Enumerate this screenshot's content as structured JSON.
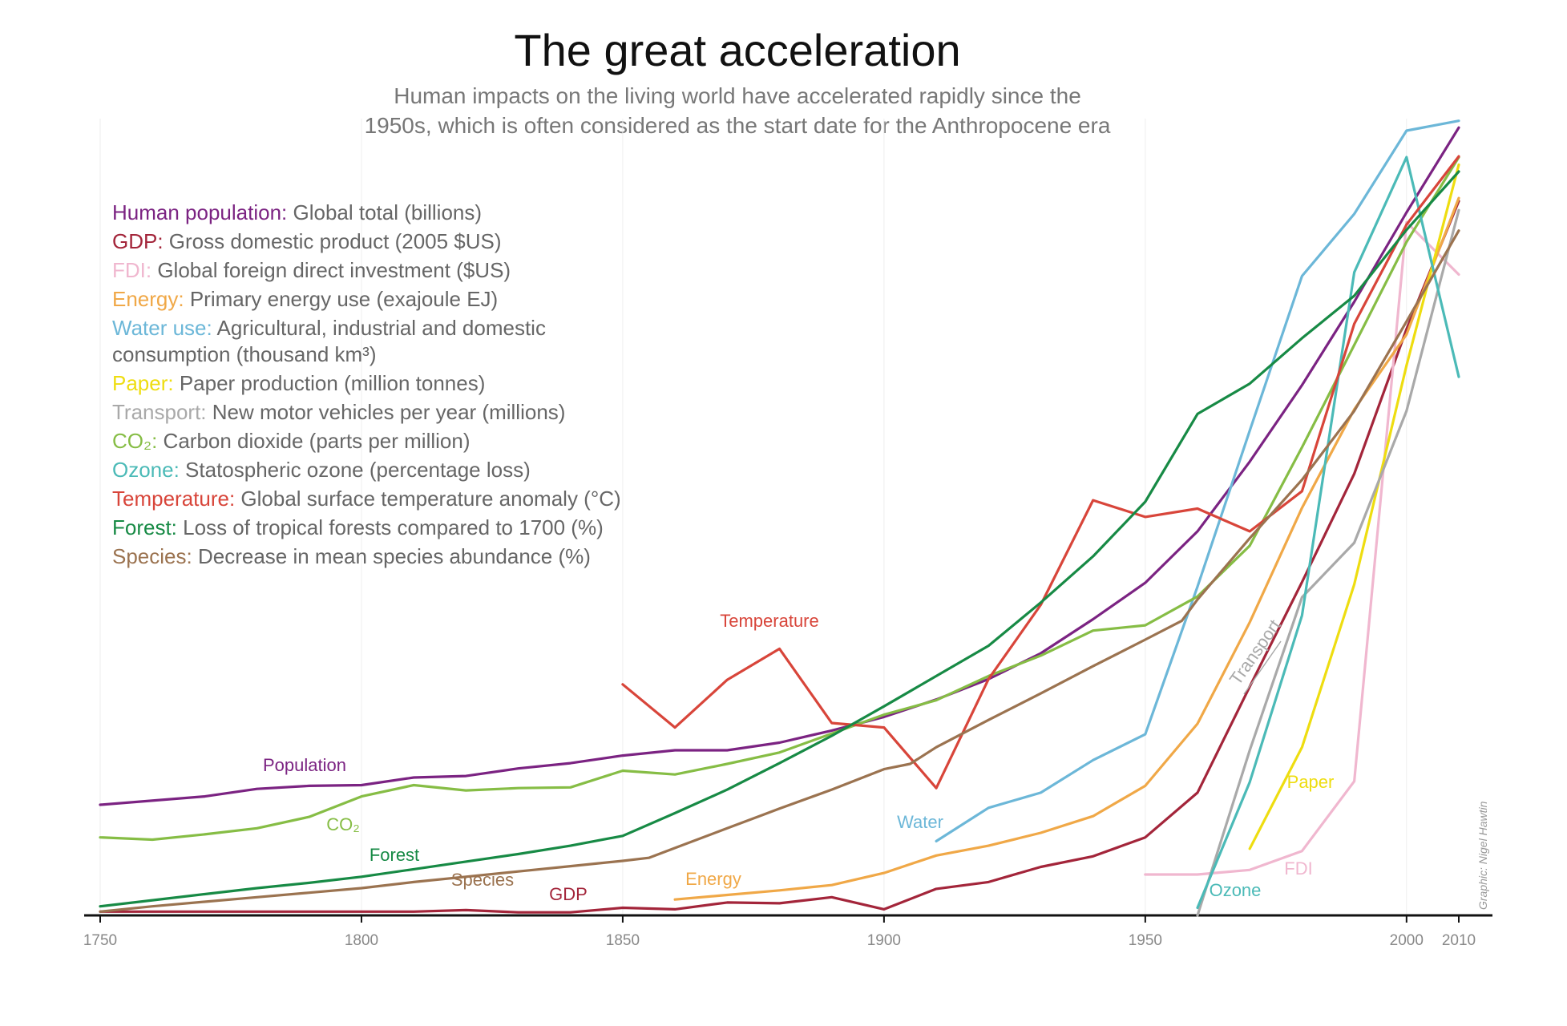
{
  "title": "The great acceleration",
  "subtitle_line1": "Human impacts on the living world have accelerated rapidly since the",
  "subtitle_line2": "1950s, which is often considered as the start date for the Anthropocene era",
  "credit": "Graphic: Nigel Hawtin",
  "legend": [
    {
      "name": "Human population:",
      "desc": "Global total (billions)",
      "color": "#7b2382"
    },
    {
      "name": "GDP:",
      "desc": "Gross domestic product (2005 $US)",
      "color": "#a3253a"
    },
    {
      "name": "FDI:",
      "desc": "Global foreign direct investment ($US)",
      "color": "#f0b7cf"
    },
    {
      "name": "Energy:",
      "desc": "Primary energy use (exajoule EJ)",
      "color": "#f0a847"
    },
    {
      "name": "Water use:",
      "desc": "Agricultural, industrial and domestic",
      "desc2": "consumption (thousand km³)",
      "color": "#6cb7d8"
    },
    {
      "name": "Paper:",
      "desc": "Paper production (million tonnes)",
      "color": "#eedd10"
    },
    {
      "name": "Transport:",
      "desc": "New motor vehicles per year (millions)",
      "color": "#a9a9a9"
    },
    {
      "name": "CO₂:",
      "desc": "Carbon dioxide (parts per million)",
      "color": "#86bd45"
    },
    {
      "name": "Ozone:",
      "desc": "Statospheric ozone (percentage loss)",
      "color": "#4bbab7"
    },
    {
      "name": "Temperature:",
      "desc": "Global surface temperature anomaly (°C)",
      "color": "#d8453a"
    },
    {
      "name": "Forest:",
      "desc": "Loss of tropical forests compared to 1700 (%)",
      "color": "#178a45"
    },
    {
      "name": "Species:",
      "desc": "Decrease in mean species abundance (%)",
      "color": "#9b7350"
    }
  ],
  "chart_data": {
    "type": "line",
    "title": "The great acceleration",
    "subtitle": "Human impacts on the living world have accelerated rapidly since the 1950s, which is often considered as the start date for the Anthropocene era",
    "xlabel": "",
    "ylabel": "",
    "x_ticks": [
      1750,
      1800,
      1850,
      1900,
      1950,
      2000,
      2010
    ],
    "xlim": [
      1750,
      2010
    ],
    "ylim": [
      0,
      1
    ],
    "grid": "vertical",
    "series": [
      {
        "name": "Human population",
        "label": "Population",
        "color": "#7b2382",
        "points": [
          [
            1750,
            0.146
          ],
          [
            1770,
            0.157
          ],
          [
            1780,
            0.167
          ],
          [
            1790,
            0.171
          ],
          [
            1800,
            0.172
          ],
          [
            1810,
            0.182
          ],
          [
            1820,
            0.184
          ],
          [
            1830,
            0.194
          ],
          [
            1840,
            0.201
          ],
          [
            1850,
            0.211
          ],
          [
            1860,
            0.218
          ],
          [
            1870,
            0.218
          ],
          [
            1880,
            0.228
          ],
          [
            1890,
            0.244
          ],
          [
            1900,
            0.262
          ],
          [
            1910,
            0.285
          ],
          [
            1920,
            0.312
          ],
          [
            1930,
            0.346
          ],
          [
            1940,
            0.391
          ],
          [
            1950,
            0.439
          ],
          [
            1960,
            0.507
          ],
          [
            1970,
            0.599
          ],
          [
            1980,
            0.7
          ],
          [
            1990,
            0.81
          ],
          [
            2000,
            0.928
          ],
          [
            2010,
            1.04
          ]
        ]
      },
      {
        "name": "GDP",
        "label": "GDP",
        "color": "#a3253a",
        "points": [
          [
            1750,
            0.005
          ],
          [
            1800,
            0.005
          ],
          [
            1810,
            0.005
          ],
          [
            1820,
            0.007
          ],
          [
            1830,
            0.004
          ],
          [
            1840,
            0.004
          ],
          [
            1850,
            0.01
          ],
          [
            1860,
            0.008
          ],
          [
            1870,
            0.017
          ],
          [
            1880,
            0.016
          ],
          [
            1890,
            0.024
          ],
          [
            1900,
            0.008
          ],
          [
            1910,
            0.035
          ],
          [
            1920,
            0.044
          ],
          [
            1930,
            0.064
          ],
          [
            1940,
            0.078
          ],
          [
            1950,
            0.103
          ],
          [
            1960,
            0.162
          ],
          [
            1970,
            0.302
          ],
          [
            1980,
            0.44
          ],
          [
            1990,
            0.583
          ],
          [
            2000,
            0.774
          ],
          [
            2010,
            0.943
          ]
        ]
      },
      {
        "name": "FDI",
        "label": "FDI",
        "color": "#f0b7cf",
        "points": [
          [
            1950,
            0.054
          ],
          [
            1960,
            0.054
          ],
          [
            1970,
            0.06
          ],
          [
            1980,
            0.085
          ],
          [
            1990,
            0.177
          ],
          [
            2000,
            0.915
          ],
          [
            2010,
            0.846
          ]
        ]
      },
      {
        "name": "Energy",
        "label": "Energy",
        "color": "#f0a847",
        "points": [
          [
            1860,
            0.021
          ],
          [
            1870,
            0.027
          ],
          [
            1880,
            0.033
          ],
          [
            1890,
            0.04
          ],
          [
            1900,
            0.056
          ],
          [
            1910,
            0.079
          ],
          [
            1920,
            0.092
          ],
          [
            1930,
            0.109
          ],
          [
            1940,
            0.131
          ],
          [
            1950,
            0.171
          ],
          [
            1960,
            0.253
          ],
          [
            1970,
            0.387
          ],
          [
            1980,
            0.538
          ],
          [
            1990,
            0.668
          ],
          [
            2000,
            0.767
          ],
          [
            2010,
            0.947
          ]
        ]
      },
      {
        "name": "Water use",
        "label": "Water",
        "color": "#6cb7d8",
        "points": [
          [
            1910,
            0.098
          ],
          [
            1920,
            0.142
          ],
          [
            1930,
            0.162
          ],
          [
            1940,
            0.205
          ],
          [
            1950,
            0.239
          ],
          [
            1960,
            0.434
          ],
          [
            1970,
            0.64
          ],
          [
            1980,
            0.844
          ],
          [
            1990,
            0.926
          ],
          [
            2000,
            1.036
          ],
          [
            2010,
            1.049
          ]
        ]
      },
      {
        "name": "Paper",
        "label": "Paper",
        "color": "#eedd10",
        "points": [
          [
            1970,
            0.088
          ],
          [
            1980,
            0.222
          ],
          [
            1990,
            0.437
          ],
          [
            2000,
            0.726
          ],
          [
            2010,
            0.991
          ]
        ]
      },
      {
        "name": "Transport",
        "label": "Transport",
        "color": "#a9a9a9",
        "points": [
          [
            1960,
            0.0
          ],
          [
            1970,
            0.218
          ],
          [
            1980,
            0.42
          ],
          [
            1990,
            0.492
          ],
          [
            2000,
            0.666
          ],
          [
            2010,
            0.931
          ]
        ]
      },
      {
        "name": "CO₂",
        "label": "CO₂",
        "color": "#86bd45",
        "points": [
          [
            1750,
            0.103
          ],
          [
            1760,
            0.1
          ],
          [
            1770,
            0.107
          ],
          [
            1780,
            0.115
          ],
          [
            1790,
            0.13
          ],
          [
            1800,
            0.157
          ],
          [
            1810,
            0.172
          ],
          [
            1820,
            0.165
          ],
          [
            1830,
            0.168
          ],
          [
            1840,
            0.169
          ],
          [
            1850,
            0.191
          ],
          [
            1860,
            0.186
          ],
          [
            1870,
            0.2
          ],
          [
            1880,
            0.215
          ],
          [
            1890,
            0.24
          ],
          [
            1900,
            0.265
          ],
          [
            1910,
            0.284
          ],
          [
            1920,
            0.316
          ],
          [
            1930,
            0.343
          ],
          [
            1940,
            0.376
          ],
          [
            1950,
            0.383
          ],
          [
            1960,
            0.421
          ],
          [
            1970,
            0.488
          ],
          [
            1980,
            0.618
          ],
          [
            1990,
            0.753
          ],
          [
            2000,
            0.889
          ],
          [
            2010,
            1.001
          ]
        ]
      },
      {
        "name": "Ozone",
        "label": "Ozone",
        "color": "#4bbab7",
        "points": [
          [
            1960,
            0.01
          ],
          [
            1970,
            0.176
          ],
          [
            1980,
            0.396
          ],
          [
            1990,
            0.849
          ],
          [
            2000,
            1.001
          ],
          [
            2010,
            0.711
          ]
        ]
      },
      {
        "name": "Temperature",
        "label": "Temperature",
        "color": "#d8453a",
        "points": [
          [
            1850,
            0.305
          ],
          [
            1860,
            0.248
          ],
          [
            1870,
            0.311
          ],
          [
            1880,
            0.352
          ],
          [
            1890,
            0.254
          ],
          [
            1900,
            0.248
          ],
          [
            1910,
            0.168
          ],
          [
            1920,
            0.312
          ],
          [
            1930,
            0.41
          ],
          [
            1940,
            0.548
          ],
          [
            1950,
            0.526
          ],
          [
            1960,
            0.537
          ],
          [
            1970,
            0.507
          ],
          [
            1980,
            0.56
          ],
          [
            1990,
            0.781
          ],
          [
            2000,
            0.912
          ],
          [
            2010,
            1.002
          ]
        ]
      },
      {
        "name": "Forest",
        "label": "Forest",
        "color": "#178a45",
        "points": [
          [
            1750,
            0.012
          ],
          [
            1760,
            0.02
          ],
          [
            1770,
            0.028
          ],
          [
            1780,
            0.036
          ],
          [
            1790,
            0.043
          ],
          [
            1800,
            0.051
          ],
          [
            1810,
            0.061
          ],
          [
            1820,
            0.071
          ],
          [
            1830,
            0.081
          ],
          [
            1840,
            0.092
          ],
          [
            1850,
            0.105
          ],
          [
            1860,
            0.135
          ],
          [
            1870,
            0.166
          ],
          [
            1880,
            0.201
          ],
          [
            1890,
            0.237
          ],
          [
            1900,
            0.276
          ],
          [
            1910,
            0.316
          ],
          [
            1920,
            0.356
          ],
          [
            1930,
            0.413
          ],
          [
            1940,
            0.474
          ],
          [
            1950,
            0.546
          ],
          [
            1960,
            0.662
          ],
          [
            1970,
            0.702
          ],
          [
            1980,
            0.762
          ],
          [
            1990,
            0.818
          ],
          [
            2000,
            0.905
          ],
          [
            2010,
            0.982
          ]
        ]
      },
      {
        "name": "Species",
        "label": "Species",
        "color": "#9b7350",
        "points": [
          [
            1750,
            0.005
          ],
          [
            1760,
            0.012
          ],
          [
            1770,
            0.018
          ],
          [
            1780,
            0.024
          ],
          [
            1790,
            0.03
          ],
          [
            1800,
            0.036
          ],
          [
            1810,
            0.044
          ],
          [
            1820,
            0.051
          ],
          [
            1830,
            0.058
          ],
          [
            1840,
            0.065
          ],
          [
            1850,
            0.072
          ],
          [
            1855,
            0.076
          ],
          [
            1860,
            0.089
          ],
          [
            1870,
            0.115
          ],
          [
            1880,
            0.141
          ],
          [
            1890,
            0.166
          ],
          [
            1900,
            0.193
          ],
          [
            1905,
            0.2
          ],
          [
            1910,
            0.222
          ],
          [
            1920,
            0.258
          ],
          [
            1930,
            0.293
          ],
          [
            1940,
            0.329
          ],
          [
            1950,
            0.364
          ],
          [
            1957,
            0.389
          ],
          [
            1960,
            0.417
          ],
          [
            1970,
            0.498
          ],
          [
            1980,
            0.575
          ],
          [
            1990,
            0.666
          ],
          [
            2000,
            0.784
          ],
          [
            2010,
            0.904
          ]
        ]
      }
    ],
    "annotations": [
      {
        "text": "Population",
        "x": 1780
      },
      {
        "text": "CO₂",
        "x": 1793
      },
      {
        "text": "Forest",
        "x": 1807
      },
      {
        "text": "Species",
        "x": 1818
      },
      {
        "text": "GDP",
        "x": 1839
      },
      {
        "text": "Temperature",
        "x": 1870
      },
      {
        "text": "Energy",
        "x": 1868
      },
      {
        "text": "Water",
        "x": 1908
      },
      {
        "text": "Transport",
        "x": 1972
      },
      {
        "text": "Ozone",
        "x": 1968
      },
      {
        "text": "FDI",
        "x": 1983
      },
      {
        "text": "Paper",
        "x": 1984
      }
    ]
  }
}
